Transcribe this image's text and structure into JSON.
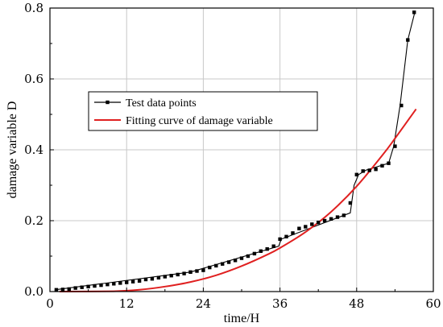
{
  "chart_data": {
    "type": "line",
    "title": "",
    "xlabel": "time/H",
    "ylabel": "damage variable D",
    "xlim": [
      0,
      60
    ],
    "ylim": [
      0,
      0.8
    ],
    "xticks": [
      "0",
      "12",
      "24",
      "36",
      "48",
      "60"
    ],
    "yticks": [
      "0.0",
      "0.2",
      "0.4",
      "0.6",
      "0.8"
    ],
    "grid": true,
    "legend_position": "upper-left",
    "series": [
      {
        "name": "Test data points",
        "color": "#000000",
        "marker": "square",
        "x": [
          1,
          2,
          3,
          4,
          5,
          6,
          7,
          8,
          9,
          10,
          11,
          12,
          13,
          14,
          15,
          16,
          17,
          18,
          19,
          20,
          21,
          22,
          23,
          24,
          25,
          26,
          27,
          28,
          29,
          30,
          31,
          32,
          33,
          34,
          35,
          36,
          37,
          38,
          39,
          40,
          41,
          42,
          43,
          44,
          45,
          46,
          47,
          48,
          49,
          50,
          51,
          52,
          53,
          54,
          55,
          56,
          57
        ],
        "y": [
          0.005,
          0.006,
          0.007,
          0.01,
          0.012,
          0.014,
          0.016,
          0.018,
          0.02,
          0.022,
          0.024,
          0.026,
          0.028,
          0.03,
          0.034,
          0.036,
          0.039,
          0.042,
          0.045,
          0.048,
          0.051,
          0.055,
          0.058,
          0.06,
          0.068,
          0.073,
          0.078,
          0.083,
          0.088,
          0.094,
          0.1,
          0.107,
          0.114,
          0.12,
          0.128,
          0.148,
          0.155,
          0.165,
          0.178,
          0.183,
          0.19,
          0.195,
          0.2,
          0.205,
          0.21,
          0.215,
          0.25,
          0.33,
          0.34,
          0.342,
          0.345,
          0.355,
          0.362,
          0.41,
          0.525,
          0.71,
          0.788
        ],
        "line_points": [
          [
            0.8,
            0.005
          ],
          [
            22,
            0.055
          ],
          [
            35.8,
            0.128
          ],
          [
            36.2,
            0.148
          ],
          [
            47,
            0.222
          ],
          [
            47.6,
            0.3
          ],
          [
            48.3,
            0.33
          ],
          [
            49.5,
            0.343
          ],
          [
            53,
            0.362
          ],
          [
            53.8,
            0.41
          ],
          [
            54.8,
            0.525
          ],
          [
            56,
            0.71
          ],
          [
            57.1,
            0.788
          ]
        ]
      },
      {
        "name": "Fitting curve of damage variable",
        "color": "#e02020",
        "x": [
          1.5,
          10,
          14,
          18,
          22,
          26,
          30,
          34,
          36,
          40,
          44,
          48,
          52,
          54,
          57.3
        ],
        "y": [
          0.0,
          0.001,
          0.005,
          0.014,
          0.027,
          0.046,
          0.072,
          0.104,
          0.123,
          0.168,
          0.225,
          0.297,
          0.384,
          0.432,
          0.515
        ]
      }
    ]
  }
}
